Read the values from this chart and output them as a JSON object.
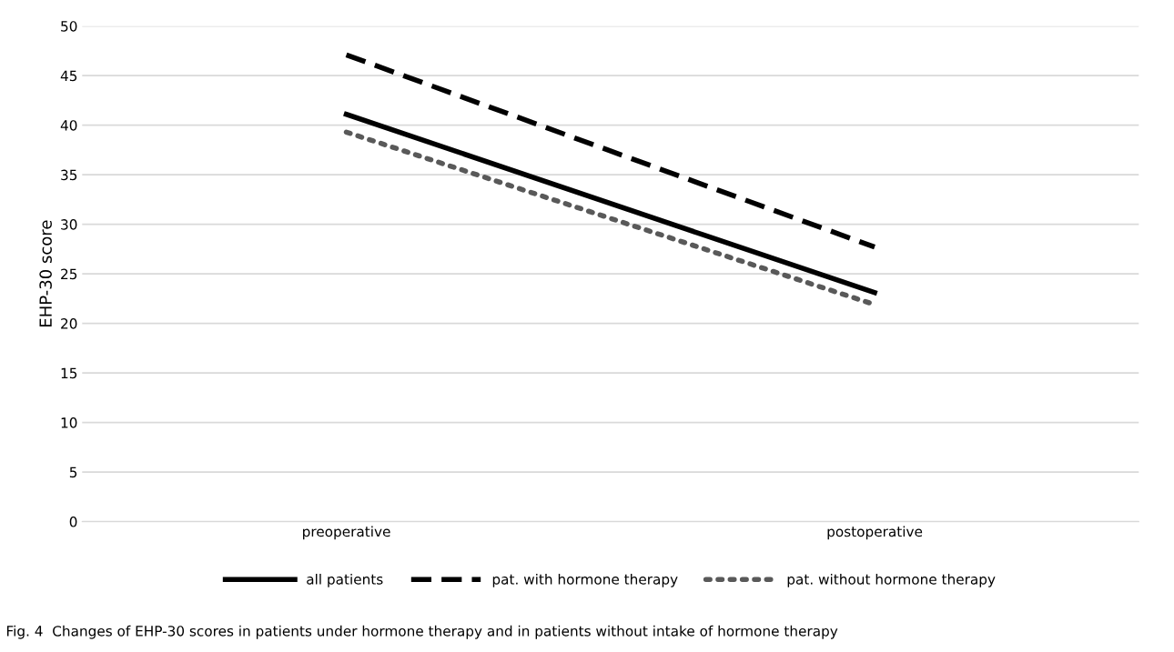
{
  "chart_data": {
    "type": "line",
    "ylabel": "EHP-30 score",
    "categories": [
      "preoperative",
      "postoperative"
    ],
    "series": [
      {
        "name": "all patients",
        "color": "#000000",
        "values": [
          41.1,
          23.1
        ],
        "line_style": "solid"
      },
      {
        "name": "pat. with hormone therapy",
        "color": "#000000",
        "values": [
          47.1,
          27.7
        ],
        "line_style": "dashed"
      },
      {
        "name": "pat. without hormone therapy",
        "color": "#595959",
        "values": [
          39.3,
          21.9
        ],
        "line_style": "dotted"
      }
    ],
    "ylim": [
      0,
      50
    ],
    "yticks": [
      0,
      5,
      10,
      15,
      20,
      25,
      30,
      35,
      40,
      45,
      50
    ],
    "grid": "y",
    "legend": "bottom",
    "annotations": [
      "Fig. 4  Changes of EHP-30 scores in patients under hormone therapy and in patients without intake of hormone therapy"
    ]
  }
}
